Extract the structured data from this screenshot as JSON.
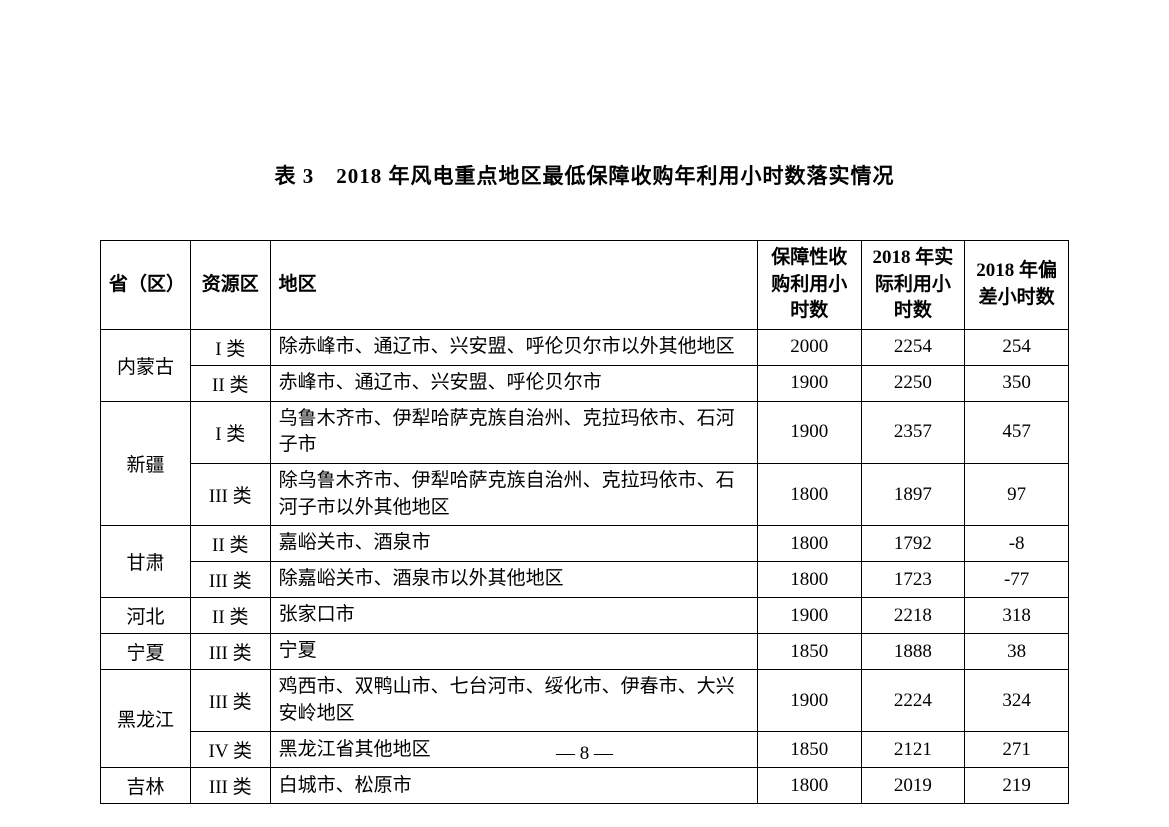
{
  "title": "表 3　2018 年风电重点地区最低保障收购年利用小时数落实情况",
  "columns": {
    "c1": "省（区）",
    "c2": "资源区",
    "c3": "地区",
    "c4": "保障性收购利用小时数",
    "c5": "2018 年实际利用小时数",
    "c6": "2018 年偏差小时数"
  },
  "rows": [
    {
      "province": "内蒙古",
      "resource": "I 类",
      "region": "除赤峰市、通辽市、兴安盟、呼伦贝尔市以外其他地区",
      "a": "2000",
      "b": "2254",
      "c": "254"
    },
    {
      "province": "",
      "resource": "II 类",
      "region": "赤峰市、通辽市、兴安盟、呼伦贝尔市",
      "a": "1900",
      "b": "2250",
      "c": "350"
    },
    {
      "province": "新疆",
      "resource": "I 类",
      "region": "乌鲁木齐市、伊犁哈萨克族自治州、克拉玛依市、石河子市",
      "a": "1900",
      "b": "2357",
      "c": "457"
    },
    {
      "province": "",
      "resource": "III 类",
      "region": "除乌鲁木齐市、伊犁哈萨克族自治州、克拉玛依市、石河子市以外其他地区",
      "a": "1800",
      "b": "1897",
      "c": "97"
    },
    {
      "province": "甘肃",
      "resource": "II 类",
      "region": "嘉峪关市、酒泉市",
      "a": "1800",
      "b": "1792",
      "c": "-8"
    },
    {
      "province": "",
      "resource": "III 类",
      "region": "除嘉峪关市、酒泉市以外其他地区",
      "a": "1800",
      "b": "1723",
      "c": "-77"
    },
    {
      "province": "河北",
      "resource": "II 类",
      "region": "张家口市",
      "a": "1900",
      "b": "2218",
      "c": "318"
    },
    {
      "province": "宁夏",
      "resource": "III 类",
      "region": "宁夏",
      "a": "1850",
      "b": "1888",
      "c": "38"
    },
    {
      "province": "黑龙江",
      "resource": "III 类",
      "region": "鸡西市、双鸭山市、七台河市、绥化市、伊春市、大兴安岭地区",
      "a": "1900",
      "b": "2224",
      "c": "324"
    },
    {
      "province": "",
      "resource": "IV 类",
      "region": "黑龙江省其他地区",
      "a": "1850",
      "b": "2121",
      "c": "271"
    },
    {
      "province": "吉林",
      "resource": "III 类",
      "region": "白城市、松原市",
      "a": "1800",
      "b": "2019",
      "c": "219"
    }
  ],
  "rowspans": [
    2,
    0,
    2,
    0,
    2,
    0,
    1,
    1,
    2,
    0,
    1
  ],
  "page_number": "— 8 —"
}
